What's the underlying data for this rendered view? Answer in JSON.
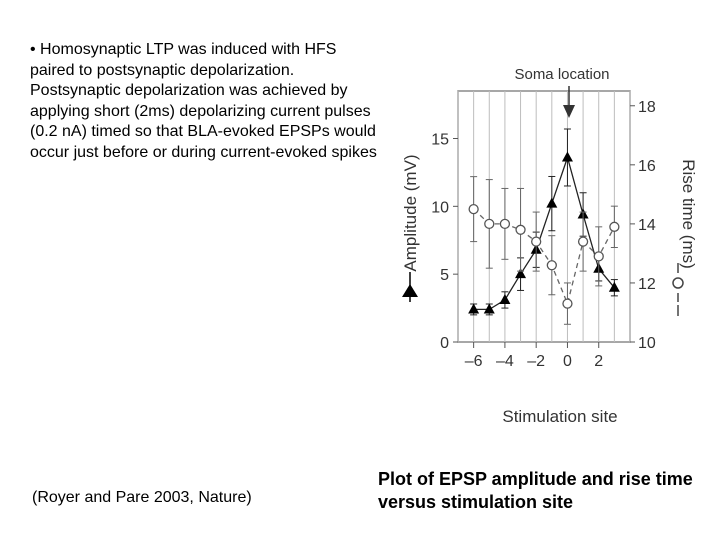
{
  "slide": {
    "bullet_text": "• Homosynaptic LTP was induced with HFS paired to postsynaptic depolarization. Postsynaptic depolarization was achieved by applying short (2ms) depolarizing current pulses (0.2 nA) timed so that BLA-evoked EPSPs would occur just before or during current-evoked spikes",
    "citation": "(Royer and Pare 2003, Nature)",
    "caption": "Plot of EPSP amplitude and rise time versus stimulation site"
  },
  "chart_data": {
    "type": "line",
    "title": "",
    "annotation": "Soma location",
    "annotation_x": 0,
    "xlabel": "Stimulation site",
    "ylabel": "Amplitude (mV)",
    "y2label": "Rise time (ms)",
    "xticks": [
      -6,
      -4,
      -2,
      0,
      2
    ],
    "xtick_labels": [
      "–6",
      "–4",
      "–2",
      "0",
      "2"
    ],
    "xlim": [
      -7,
      4
    ],
    "yticks": [
      0,
      5,
      10,
      15
    ],
    "ylim": [
      0,
      18.5
    ],
    "y2ticks": [
      10,
      12,
      14,
      16,
      18
    ],
    "y2lim": [
      10,
      18.5
    ],
    "series": [
      {
        "marker": "filled-triangle",
        "line": "solid",
        "axis": "left",
        "x": [
          -6,
          -5,
          -4,
          -3,
          -2,
          -1,
          0,
          1,
          2,
          3
        ],
        "y": [
          2.4,
          2.4,
          3.1,
          5.0,
          6.8,
          10.2,
          13.6,
          9.4,
          5.4,
          4.0
        ],
        "err": [
          0.4,
          0.4,
          0.6,
          1.2,
          1.3,
          2.0,
          2.1,
          1.6,
          0.9,
          0.6
        ]
      },
      {
        "marker": "open-circle",
        "line": "dashed",
        "axis": "right",
        "x": [
          -6,
          -5,
          -4,
          -3,
          -2,
          -1,
          0,
          1,
          2,
          3
        ],
        "y": [
          14.5,
          14.0,
          14.0,
          13.8,
          13.4,
          12.6,
          11.3,
          13.4,
          12.9,
          13.9
        ],
        "err": [
          1.1,
          1.5,
          1.2,
          1.4,
          1.0,
          1.0,
          0.7,
          1.0,
          1.0,
          0.7
        ]
      }
    ]
  }
}
